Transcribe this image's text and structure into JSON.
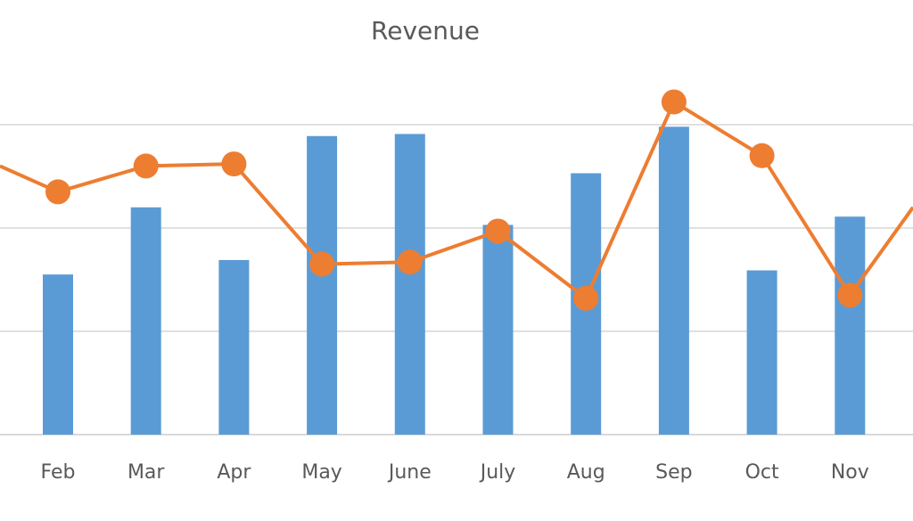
{
  "chart_data": {
    "type": "bar",
    "title": "Revenue",
    "categories": [
      "Feb",
      "Mar",
      "Apr",
      "May",
      "June",
      "July",
      "Aug",
      "Sep",
      "Oct",
      "Nov"
    ],
    "series": [
      {
        "type": "bar",
        "color": "#5B9BD5",
        "values": [
          1.55,
          2.2,
          1.69,
          2.89,
          2.91,
          2.03,
          2.53,
          2.98,
          1.59,
          2.11
        ]
      },
      {
        "type": "line",
        "color": "#ED7D31",
        "marker": "circle",
        "values": [
          2.35,
          2.6,
          2.62,
          1.65,
          1.67,
          1.97,
          1.32,
          3.22,
          2.7,
          1.35
        ]
      }
    ],
    "ylim": [
      0,
      3.0
    ],
    "gridlines": [
      0,
      1,
      2,
      3
    ],
    "grid": true,
    "legend": "none"
  }
}
